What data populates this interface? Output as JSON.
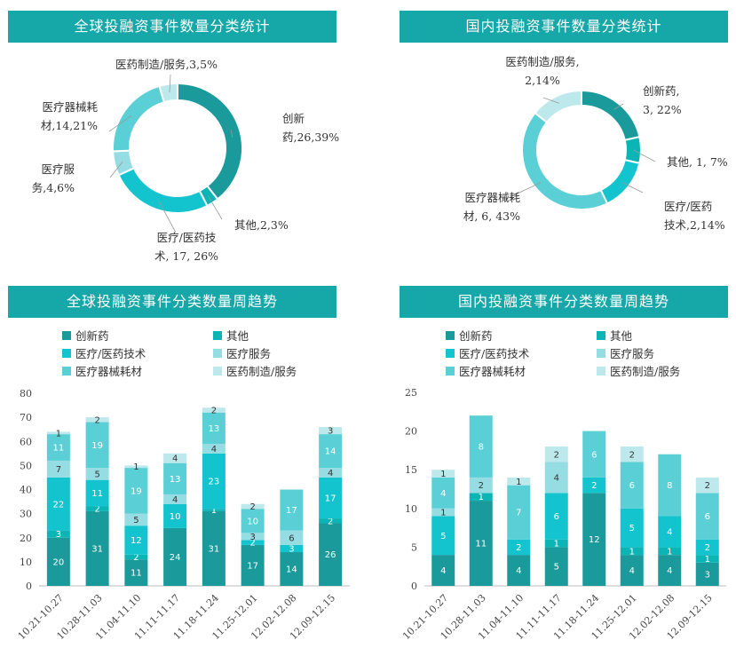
{
  "chart_data": [
    {
      "type": "pie",
      "title": "全球投融资事件数量分类统计",
      "series": [
        {
          "name": "创新药",
          "value": 26,
          "pct": "39%"
        },
        {
          "name": "其他",
          "value": 2,
          "pct": "3%"
        },
        {
          "name": "医疗/医药技术",
          "value": 17,
          "pct": "26%"
        },
        {
          "name": "医疗服务",
          "value": 4,
          "pct": "6%"
        },
        {
          "name": "医疗器械耗材",
          "value": 14,
          "pct": "21%"
        },
        {
          "name": "医药制造/服务",
          "value": 3,
          "pct": "5%"
        }
      ],
      "labels": [
        {
          "lines": [
            "创新",
            "药,26,39%"
          ]
        },
        {
          "lines": [
            "其他,2,3%"
          ]
        },
        {
          "lines": [
            "医疗/医药技",
            "术, 17, 26%"
          ]
        },
        {
          "lines": [
            "医疗服",
            "务,4,6%"
          ]
        },
        {
          "lines": [
            "医疗器械耗",
            "材,14,21%"
          ]
        },
        {
          "lines": [
            "医药制造/服务,3,5%"
          ]
        }
      ]
    },
    {
      "type": "pie",
      "title": "国内投融资事件数量分类统计",
      "series": [
        {
          "name": "创新药",
          "value": 3,
          "pct": "22%"
        },
        {
          "name": "其他",
          "value": 1,
          "pct": "7%"
        },
        {
          "name": "医疗/医药技术",
          "value": 2,
          "pct": "14%"
        },
        {
          "name": "医疗器械耗材",
          "value": 6,
          "pct": "43%"
        },
        {
          "name": "医药制造/服务",
          "value": 2,
          "pct": "14%"
        }
      ],
      "labels": [
        {
          "lines": [
            "创新药,",
            "3, 22%"
          ]
        },
        {
          "lines": [
            "其他, 1, 7%"
          ]
        },
        {
          "lines": [
            "医疗/医药",
            "技术,2,14%"
          ]
        },
        {
          "lines": [
            "医疗器械耗",
            "材, 6, 43%"
          ]
        },
        {
          "lines": [
            "医药制造/服务,",
            "2,14%"
          ]
        }
      ]
    },
    {
      "type": "bar",
      "stacked": true,
      "title": "全球投融资事件分类数量周趋势",
      "categories": [
        "10.21-10.27",
        "10.28-11.03",
        "11.04-11.10",
        "11.11-11.17",
        "11.18-11.24",
        "11.25-12.01",
        "12.02-12.08",
        "12.09-12.15"
      ],
      "ylim": [
        0,
        80
      ],
      "yticks": [
        0,
        10,
        20,
        30,
        40,
        50,
        60,
        70,
        80
      ],
      "legend": [
        "创新药",
        "其他",
        "医疗/医药技术",
        "医疗服务",
        "医疗器械耗材",
        "医药制造/服务"
      ],
      "series": [
        {
          "name": "创新药",
          "values": [
            20,
            31,
            11,
            24,
            31,
            17,
            14,
            26
          ]
        },
        {
          "name": "其他",
          "values": [
            3,
            2,
            2,
            0,
            1,
            0,
            0,
            2
          ]
        },
        {
          "name": "医疗/医药技术",
          "values": [
            22,
            11,
            12,
            10,
            23,
            2,
            3,
            17
          ]
        },
        {
          "name": "医疗服务",
          "values": [
            7,
            5,
            5,
            4,
            4,
            3,
            6,
            4
          ]
        },
        {
          "name": "医疗器械耗材",
          "values": [
            11,
            19,
            19,
            13,
            13,
            10,
            17,
            14
          ]
        },
        {
          "name": "医药制造/服务",
          "values": [
            1,
            2,
            1,
            4,
            2,
            2,
            0,
            3
          ]
        }
      ]
    },
    {
      "type": "bar",
      "stacked": true,
      "title": "国内投融资事件分类数量周趋势",
      "categories": [
        "10.21-10.27",
        "10.28-11.03",
        "11.04-11.10",
        "11.11-11.17",
        "11.18-11.24",
        "11.25-12.01",
        "12.02-12.08",
        "12.09-12.15"
      ],
      "ylim": [
        0,
        25
      ],
      "yticks": [
        0,
        5,
        10,
        15,
        20,
        25
      ],
      "legend": [
        "创新药",
        "其他",
        "医疗/医药技术",
        "医疗服务",
        "医疗器械耗材",
        "医药制造/服务"
      ],
      "series": [
        {
          "name": "创新药",
          "values": [
            4,
            11,
            4,
            5,
            12,
            4,
            4,
            3
          ]
        },
        {
          "name": "其他",
          "values": [
            0,
            1,
            0,
            1,
            0,
            1,
            1,
            1
          ]
        },
        {
          "name": "医疗/医药技术",
          "values": [
            5,
            0,
            2,
            6,
            2,
            5,
            4,
            2
          ]
        },
        {
          "name": "医疗服务",
          "values": [
            1,
            2,
            0,
            4,
            0,
            0,
            0,
            0
          ]
        },
        {
          "name": "医疗器械耗材",
          "values": [
            4,
            8,
            7,
            0,
            6,
            6,
            8,
            6
          ]
        },
        {
          "name": "医药制造/服务",
          "values": [
            1,
            0,
            1,
            2,
            0,
            2,
            0,
            2
          ]
        }
      ]
    }
  ],
  "colors": {
    "创新药": "#1a9a9b",
    "其他": "#0cb5b5",
    "医疗/医药技术": "#13c4ce",
    "医疗服务": "#95dde2",
    "医疗器械耗材": "#5ad0d6",
    "医药制造/服务": "#bde8ec",
    "banner": "#16a7a8"
  }
}
